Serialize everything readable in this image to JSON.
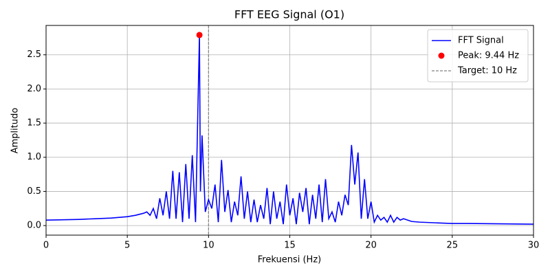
{
  "chart_data": {
    "type": "line",
    "title": "FFT EEG Signal (O1)",
    "x_label": "Frekuensi (Hz)",
    "y_label": "Amplitudo",
    "xlim": [
      0,
      30
    ],
    "xticks": [
      0,
      5,
      10,
      15,
      20,
      25,
      30
    ],
    "ylim": [
      -0.14,
      2.93
    ],
    "yticks": [
      {
        "value": 0,
        "label": "0.0"
      },
      0.5,
      {
        "value": 1,
        "label": "1.0"
      },
      1.5,
      {
        "value": 2,
        "label": "2.0"
      },
      2.5
    ],
    "grid": true,
    "legend": "upper right",
    "series": [
      {
        "name": "FFT Signal",
        "color": "#0000ff",
        "kind": "line",
        "x": [
          0,
          1,
          2,
          3,
          4,
          5,
          5.5,
          6,
          6.2,
          6.4,
          6.6,
          6.8,
          7,
          7.2,
          7.4,
          7.6,
          7.8,
          8,
          8.2,
          8.4,
          8.6,
          8.8,
          9,
          9.2,
          9.44,
          9.5,
          9.6,
          9.8,
          10,
          10.2,
          10.4,
          10.6,
          10.8,
          11,
          11.2,
          11.4,
          11.6,
          11.8,
          12,
          12.2,
          12.4,
          12.6,
          12.8,
          13,
          13.2,
          13.4,
          13.6,
          13.8,
          14,
          14.2,
          14.4,
          14.6,
          14.8,
          15,
          15.2,
          15.4,
          15.6,
          15.8,
          16,
          16.2,
          16.4,
          16.6,
          16.8,
          17,
          17.2,
          17.4,
          17.6,
          17.8,
          18,
          18.2,
          18.4,
          18.6,
          18.8,
          19,
          19.2,
          19.4,
          19.6,
          19.8,
          20,
          20.2,
          20.4,
          20.6,
          20.8,
          21,
          21.2,
          21.4,
          21.6,
          21.8,
          22,
          22.5,
          23,
          24,
          25,
          26,
          28,
          30
        ],
        "values": [
          0.08,
          0.085,
          0.09,
          0.1,
          0.11,
          0.13,
          0.15,
          0.18,
          0.2,
          0.15,
          0.25,
          0.1,
          0.4,
          0.15,
          0.5,
          0.1,
          0.8,
          0.1,
          0.78,
          0.05,
          0.9,
          0.1,
          1.03,
          0.05,
          2.79,
          0.5,
          1.32,
          0.2,
          0.38,
          0.25,
          0.6,
          0.05,
          0.96,
          0.2,
          0.52,
          0.05,
          0.35,
          0.15,
          0.72,
          0.1,
          0.5,
          0.05,
          0.38,
          0.05,
          0.3,
          0.1,
          0.55,
          0.02,
          0.5,
          0.1,
          0.35,
          0.02,
          0.6,
          0.15,
          0.4,
          0.02,
          0.48,
          0.2,
          0.55,
          0.02,
          0.45,
          0.1,
          0.6,
          0.05,
          0.68,
          0.1,
          0.2,
          0.05,
          0.35,
          0.15,
          0.45,
          0.3,
          1.18,
          0.6,
          1.07,
          0.1,
          0.68,
          0.1,
          0.35,
          0.05,
          0.15,
          0.08,
          0.12,
          0.05,
          0.15,
          0.05,
          0.12,
          0.08,
          0.1,
          0.06,
          0.05,
          0.04,
          0.03,
          0.03,
          0.025,
          0.02
        ]
      },
      {
        "name": "Peak: 9.44 Hz",
        "color": "#ff0000",
        "kind": "point",
        "x": [
          9.44
        ],
        "values": [
          2.79
        ]
      }
    ],
    "vlines": [
      {
        "name": "Target: 10 Hz",
        "x": 10,
        "color": "#808080"
      }
    ]
  }
}
